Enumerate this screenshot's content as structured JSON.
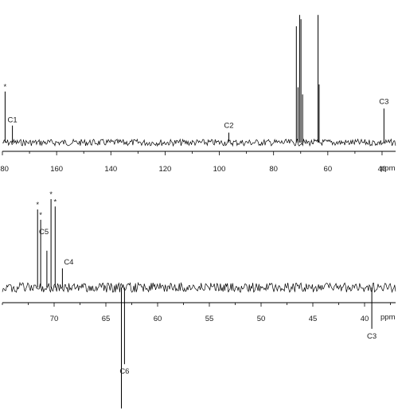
{
  "chart_data": [
    {
      "type": "line",
      "xlim": [
        180,
        35
      ],
      "axis_unit_label": "ppm",
      "ticks": [
        180,
        160,
        140,
        120,
        100,
        80,
        60,
        40
      ],
      "tick_labels": [
        "180",
        "160",
        "140",
        "120",
        "100",
        "80",
        "60",
        "40"
      ],
      "peaks": [
        {
          "ppm": 179.0,
          "intensity": 0.36,
          "star": "*",
          "label": ""
        },
        {
          "ppm": 176.3,
          "intensity": 0.12,
          "label": "C1"
        },
        {
          "ppm": 96.5,
          "intensity": 0.07,
          "label": "C2"
        },
        {
          "ppm": 71.6,
          "intensity": 0.82
        },
        {
          "ppm": 71.0,
          "intensity": 0.39
        },
        {
          "ppm": 70.4,
          "intensity": 0.9
        },
        {
          "ppm": 69.9,
          "intensity": 0.87
        },
        {
          "ppm": 69.3,
          "intensity": 0.34
        },
        {
          "ppm": 63.6,
          "intensity": 0.9
        },
        {
          "ppm": 63.2,
          "intensity": 0.41
        },
        {
          "ppm": 39.3,
          "intensity": 0.24,
          "label": "C3"
        }
      ]
    },
    {
      "type": "line",
      "xlim": [
        75,
        37
      ],
      "axis_unit_label": "ppm",
      "ticks": [
        70,
        65,
        60,
        55,
        50,
        45,
        40
      ],
      "tick_labels": [
        "70",
        "65",
        "60",
        "55",
        "50",
        "45",
        "40"
      ],
      "peaks": [
        {
          "ppm": 71.6,
          "intensity": 0.53,
          "star": "*"
        },
        {
          "ppm": 71.3,
          "intensity": 0.46,
          "star": "*",
          "label": "C5"
        },
        {
          "ppm": 70.7,
          "intensity": 0.25
        },
        {
          "ppm": 70.3,
          "intensity": 0.6,
          "star": "*"
        },
        {
          "ppm": 69.9,
          "intensity": 0.55,
          "star": "*"
        },
        {
          "ppm": 69.2,
          "intensity": 0.13,
          "label": "C4"
        },
        {
          "ppm": 63.5,
          "intensity": -0.82
        },
        {
          "ppm": 63.2,
          "intensity": -0.52,
          "label": "C6"
        },
        {
          "ppm": 39.3,
          "intensity": -0.28,
          "label": "C3"
        }
      ]
    }
  ]
}
